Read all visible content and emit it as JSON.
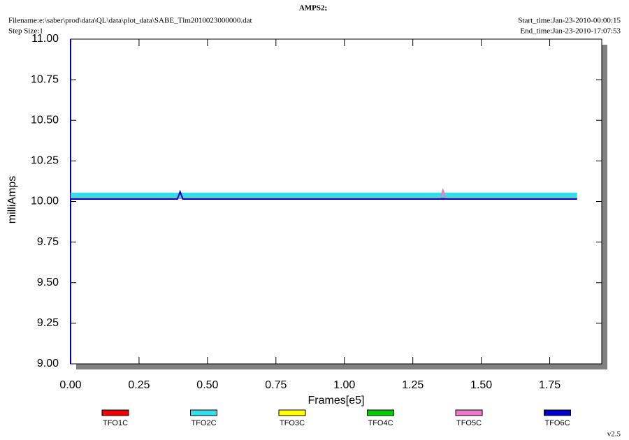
{
  "chart_data": {
    "type": "line",
    "title": "AMPS2;",
    "filename": "Filename:e:\\saber\\prod\\data\\QL\\data\\plot_data\\SABE_Tlm2010023000000.dat",
    "step_size": "Step Size:1",
    "start_time": "Start_time:Jan-23-2010-00:00:15",
    "end_time": "End_time:Jan-23-2010-17:07:53",
    "version": "v2.5",
    "x_label": "Frames[e5]",
    "y_label": "milliAmps",
    "x": [
      0,
      0.2,
      0.39,
      0.4,
      0.41,
      0.6,
      0.8,
      1.0,
      1.2,
      1.35,
      1.36,
      1.37,
      1.6,
      1.85
    ],
    "series": [
      {
        "name": "TFO2C",
        "color": "#33ddee",
        "values": [
          10.04,
          10.04,
          10.04,
          10.04,
          10.04,
          10.04,
          10.04,
          10.04,
          10.04,
          10.04,
          10.04,
          10.04,
          10.04,
          10.04
        ]
      },
      {
        "name": "TFO1C",
        "color": "#ee0000",
        "values": [
          10.02,
          10.02,
          10.02,
          10.02,
          10.02,
          10.02,
          10.02,
          10.02,
          10.02,
          10.02,
          10.02,
          10.02,
          10.02,
          10.02
        ]
      },
      {
        "name": "TFO3C",
        "color": "#ffff00",
        "values": [
          10.02,
          10.02,
          10.02,
          10.02,
          10.02,
          10.02,
          10.02,
          10.02,
          10.02,
          10.02,
          10.02,
          10.02,
          10.02,
          10.02
        ]
      },
      {
        "name": "TFO4C",
        "color": "#00cc00",
        "values": [
          10.02,
          10.02,
          10.02,
          10.02,
          10.02,
          10.02,
          10.02,
          10.02,
          10.02,
          10.02,
          10.02,
          10.02,
          10.02,
          10.02
        ]
      },
      {
        "name": "TFO5C",
        "color": "#ee77cc",
        "values": [
          10.02,
          10.02,
          10.02,
          10.02,
          10.02,
          10.02,
          10.02,
          10.02,
          10.02,
          10.02,
          10.07,
          10.02,
          10.02,
          10.02
        ]
      },
      {
        "name": "TFO6C",
        "color": "#0000cc",
        "values": [
          10.015,
          10.015,
          10.015,
          10.06,
          10.015,
          10.015,
          10.015,
          10.015,
          10.015,
          10.015,
          10.015,
          10.015,
          10.015,
          10.015
        ]
      }
    ],
    "legend_order": [
      1,
      0,
      2,
      3,
      4,
      5
    ],
    "xlim": [
      0,
      1.94
    ],
    "xticks": [
      {
        "value": 0,
        "label": "0.00"
      },
      {
        "value": 0.25,
        "label": "0.25"
      },
      {
        "value": 0.5,
        "label": "0.50"
      },
      {
        "value": 0.75,
        "label": "0.75"
      },
      {
        "value": 1,
        "label": "1.00"
      },
      {
        "value": 1.25,
        "label": "1.25"
      },
      {
        "value": 1.5,
        "label": "1.50"
      },
      {
        "value": 1.75,
        "label": "1.75"
      }
    ],
    "ylim": [
      9,
      11
    ],
    "yticks": [
      {
        "value": 9,
        "label": "9.00"
      },
      {
        "value": 9.25,
        "label": "9.25"
      },
      {
        "value": 9.5,
        "label": "9.50"
      },
      {
        "value": 9.75,
        "label": "9.75"
      },
      {
        "value": 10,
        "label": "10.00"
      },
      {
        "value": 10.25,
        "label": "10.25"
      },
      {
        "value": 10.5,
        "label": "10.50"
      },
      {
        "value": 10.75,
        "label": "10.75"
      },
      {
        "value": 11,
        "label": "11.00"
      }
    ],
    "grid": false,
    "legend": "bottom"
  }
}
